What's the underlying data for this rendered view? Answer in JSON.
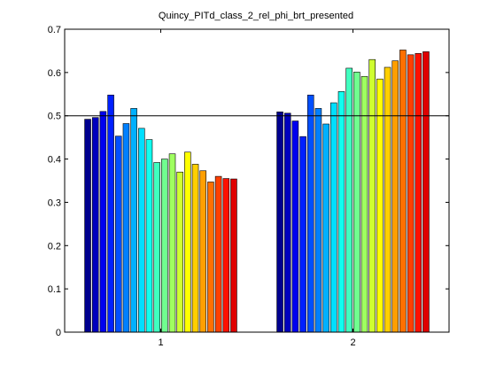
{
  "chart_data": {
    "type": "bar",
    "title": "Quincy_PITd_class_2_rel_phi_brt_presented",
    "xlabel": "",
    "ylabel": "",
    "categories": [
      "1",
      "2"
    ],
    "ylim": [
      0,
      0.7
    ],
    "yticks": [
      "0",
      "0.1",
      "0.2",
      "0.3",
      "0.4",
      "0.5",
      "0.6",
      "0.7"
    ],
    "reference_line": 0.5,
    "grid": false,
    "legend": "none",
    "series_colors": [
      "#00008f",
      "#0000bf",
      "#0000ef",
      "#0020ff",
      "#0050ff",
      "#0080ff",
      "#00b0ff",
      "#00dfff",
      "#10ffef",
      "#40ffbf",
      "#70ff8f",
      "#9fff60",
      "#cfff30",
      "#ffff00",
      "#ffcf00",
      "#ff9f00",
      "#ff7000",
      "#ff4000",
      "#ff1000",
      "#df0000",
      "#af0000",
      "#800000"
    ],
    "values": [
      [
        0.492,
        0.496,
        0.51,
        0.548,
        0.453,
        0.482,
        0.517,
        0.471,
        0.445,
        0.392,
        0.4,
        0.412,
        0.37,
        0.416,
        0.388,
        0.373,
        0.347,
        0.36,
        0.355,
        0.354
      ],
      [
        0.509,
        0.506,
        0.488,
        0.452,
        0.548,
        0.517,
        0.481,
        0.53,
        0.556,
        0.61,
        0.601,
        0.591,
        0.63,
        0.585,
        0.612,
        0.627,
        0.652,
        0.641,
        0.644,
        0.648
      ]
    ]
  }
}
